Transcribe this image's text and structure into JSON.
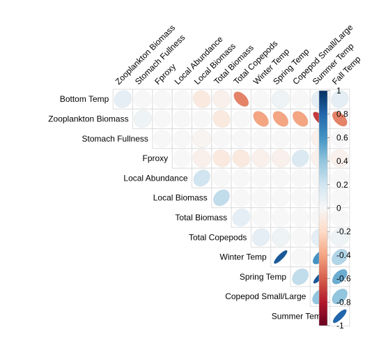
{
  "chart_data": {
    "type": "heatmap",
    "subtype": "correlation-ellipse-upper-triangle",
    "variables": [
      "Bottom Temp",
      "Zooplankton Biomass",
      "Stomach Fullness",
      "Fproxy",
      "Local Abundance",
      "Local Biomass",
      "Total Biomass",
      "Total Copepods",
      "Winter Temp",
      "Spring Temp",
      "Copepod Small/Large",
      "Summer Temp",
      "Fall Temp"
    ],
    "cells": [
      {
        "row": 0,
        "col": 1,
        "value": 0.1
      },
      {
        "row": 0,
        "col": 2,
        "value": 0.0
      },
      {
        "row": 0,
        "col": 3,
        "value": 0.0
      },
      {
        "row": 0,
        "col": 4,
        "value": 0.0
      },
      {
        "row": 0,
        "col": 5,
        "value": -0.1
      },
      {
        "row": 0,
        "col": 6,
        "value": -0.05
      },
      {
        "row": 0,
        "col": 7,
        "value": -0.5
      },
      {
        "row": 0,
        "col": 8,
        "value": 0.0
      },
      {
        "row": 0,
        "col": 9,
        "value": 0.05
      },
      {
        "row": 0,
        "col": 10,
        "value": 0.0
      },
      {
        "row": 0,
        "col": 11,
        "value": 0.1
      },
      {
        "row": 0,
        "col": 12,
        "value": 0.1
      },
      {
        "row": 1,
        "col": 2,
        "value": 0.05
      },
      {
        "row": 1,
        "col": 3,
        "value": 0.0
      },
      {
        "row": 1,
        "col": 4,
        "value": 0.0
      },
      {
        "row": 1,
        "col": 5,
        "value": 0.0
      },
      {
        "row": 1,
        "col": 6,
        "value": -0.1
      },
      {
        "row": 1,
        "col": 7,
        "value": 0.0
      },
      {
        "row": 1,
        "col": 8,
        "value": -0.4
      },
      {
        "row": 1,
        "col": 9,
        "value": -0.4
      },
      {
        "row": 1,
        "col": 10,
        "value": -0.4
      },
      {
        "row": 1,
        "col": 11,
        "value": -0.7
      },
      {
        "row": 1,
        "col": 12,
        "value": -0.5
      },
      {
        "row": 2,
        "col": 3,
        "value": 0.0
      },
      {
        "row": 2,
        "col": 4,
        "value": 0.0
      },
      {
        "row": 2,
        "col": 5,
        "value": -0.02
      },
      {
        "row": 2,
        "col": 6,
        "value": 0.0
      },
      {
        "row": 2,
        "col": 7,
        "value": 0.0
      },
      {
        "row": 2,
        "col": 8,
        "value": 0.0
      },
      {
        "row": 2,
        "col": 9,
        "value": 0.0
      },
      {
        "row": 2,
        "col": 10,
        "value": 0.0
      },
      {
        "row": 2,
        "col": 11,
        "value": -0.05
      },
      {
        "row": 2,
        "col": 12,
        "value": 0.0
      },
      {
        "row": 3,
        "col": 4,
        "value": 0.0
      },
      {
        "row": 3,
        "col": 5,
        "value": -0.05
      },
      {
        "row": 3,
        "col": 6,
        "value": -0.1
      },
      {
        "row": 3,
        "col": 7,
        "value": -0.1
      },
      {
        "row": 3,
        "col": 8,
        "value": -0.05
      },
      {
        "row": 3,
        "col": 9,
        "value": -0.05
      },
      {
        "row": 3,
        "col": 10,
        "value": 0.15
      },
      {
        "row": 3,
        "col": 11,
        "value": -0.05
      },
      {
        "row": 3,
        "col": 12,
        "value": -0.05
      },
      {
        "row": 4,
        "col": 5,
        "value": 0.2
      },
      {
        "row": 4,
        "col": 6,
        "value": 0.0
      },
      {
        "row": 4,
        "col": 7,
        "value": 0.0
      },
      {
        "row": 4,
        "col": 8,
        "value": 0.0
      },
      {
        "row": 4,
        "col": 9,
        "value": 0.0
      },
      {
        "row": 4,
        "col": 10,
        "value": 0.0
      },
      {
        "row": 4,
        "col": 11,
        "value": 0.0
      },
      {
        "row": 4,
        "col": 12,
        "value": 0.0
      },
      {
        "row": 5,
        "col": 6,
        "value": 0.25
      },
      {
        "row": 5,
        "col": 7,
        "value": 0.0
      },
      {
        "row": 5,
        "col": 8,
        "value": 0.0
      },
      {
        "row": 5,
        "col": 9,
        "value": 0.0
      },
      {
        "row": 5,
        "col": 10,
        "value": 0.0
      },
      {
        "row": 5,
        "col": 11,
        "value": 0.0
      },
      {
        "row": 5,
        "col": 12,
        "value": 0.0
      },
      {
        "row": 6,
        "col": 7,
        "value": 0.1
      },
      {
        "row": 6,
        "col": 8,
        "value": 0.0
      },
      {
        "row": 6,
        "col": 9,
        "value": 0.0
      },
      {
        "row": 6,
        "col": 10,
        "value": 0.0
      },
      {
        "row": 6,
        "col": 11,
        "value": 0.0
      },
      {
        "row": 6,
        "col": 12,
        "value": 0.0
      },
      {
        "row": 7,
        "col": 8,
        "value": 0.1
      },
      {
        "row": 7,
        "col": 9,
        "value": 0.05
      },
      {
        "row": 7,
        "col": 10,
        "value": 0.0
      },
      {
        "row": 7,
        "col": 11,
        "value": 0.1
      },
      {
        "row": 7,
        "col": 12,
        "value": 0.05
      },
      {
        "row": 8,
        "col": 9,
        "value": 0.85
      },
      {
        "row": 8,
        "col": 10,
        "value": 0.0
      },
      {
        "row": 8,
        "col": 11,
        "value": 0.6
      },
      {
        "row": 8,
        "col": 12,
        "value": 0.3
      },
      {
        "row": 9,
        "col": 10,
        "value": 0.25
      },
      {
        "row": 9,
        "col": 11,
        "value": 0.85
      },
      {
        "row": 9,
        "col": 12,
        "value": 0.5
      },
      {
        "row": 10,
        "col": 11,
        "value": 0.4
      },
      {
        "row": 10,
        "col": 12,
        "value": 0.4
      },
      {
        "row": 11,
        "col": 12,
        "value": 0.8
      }
    ],
    "colorbar": {
      "range": [
        -1,
        1
      ],
      "ticks": [
        "1",
        "0.8",
        "0.6",
        "0.4",
        "0.2",
        "0",
        "-0.2",
        "-0.4",
        "-0.6",
        "-0.8",
        "-1"
      ],
      "colors": {
        "neg": "#67001f",
        "mid": "#f7f7f7",
        "pos": "#053061"
      },
      "placement": "right"
    },
    "grid": true,
    "title": "",
    "xlabel": "",
    "ylabel": ""
  }
}
